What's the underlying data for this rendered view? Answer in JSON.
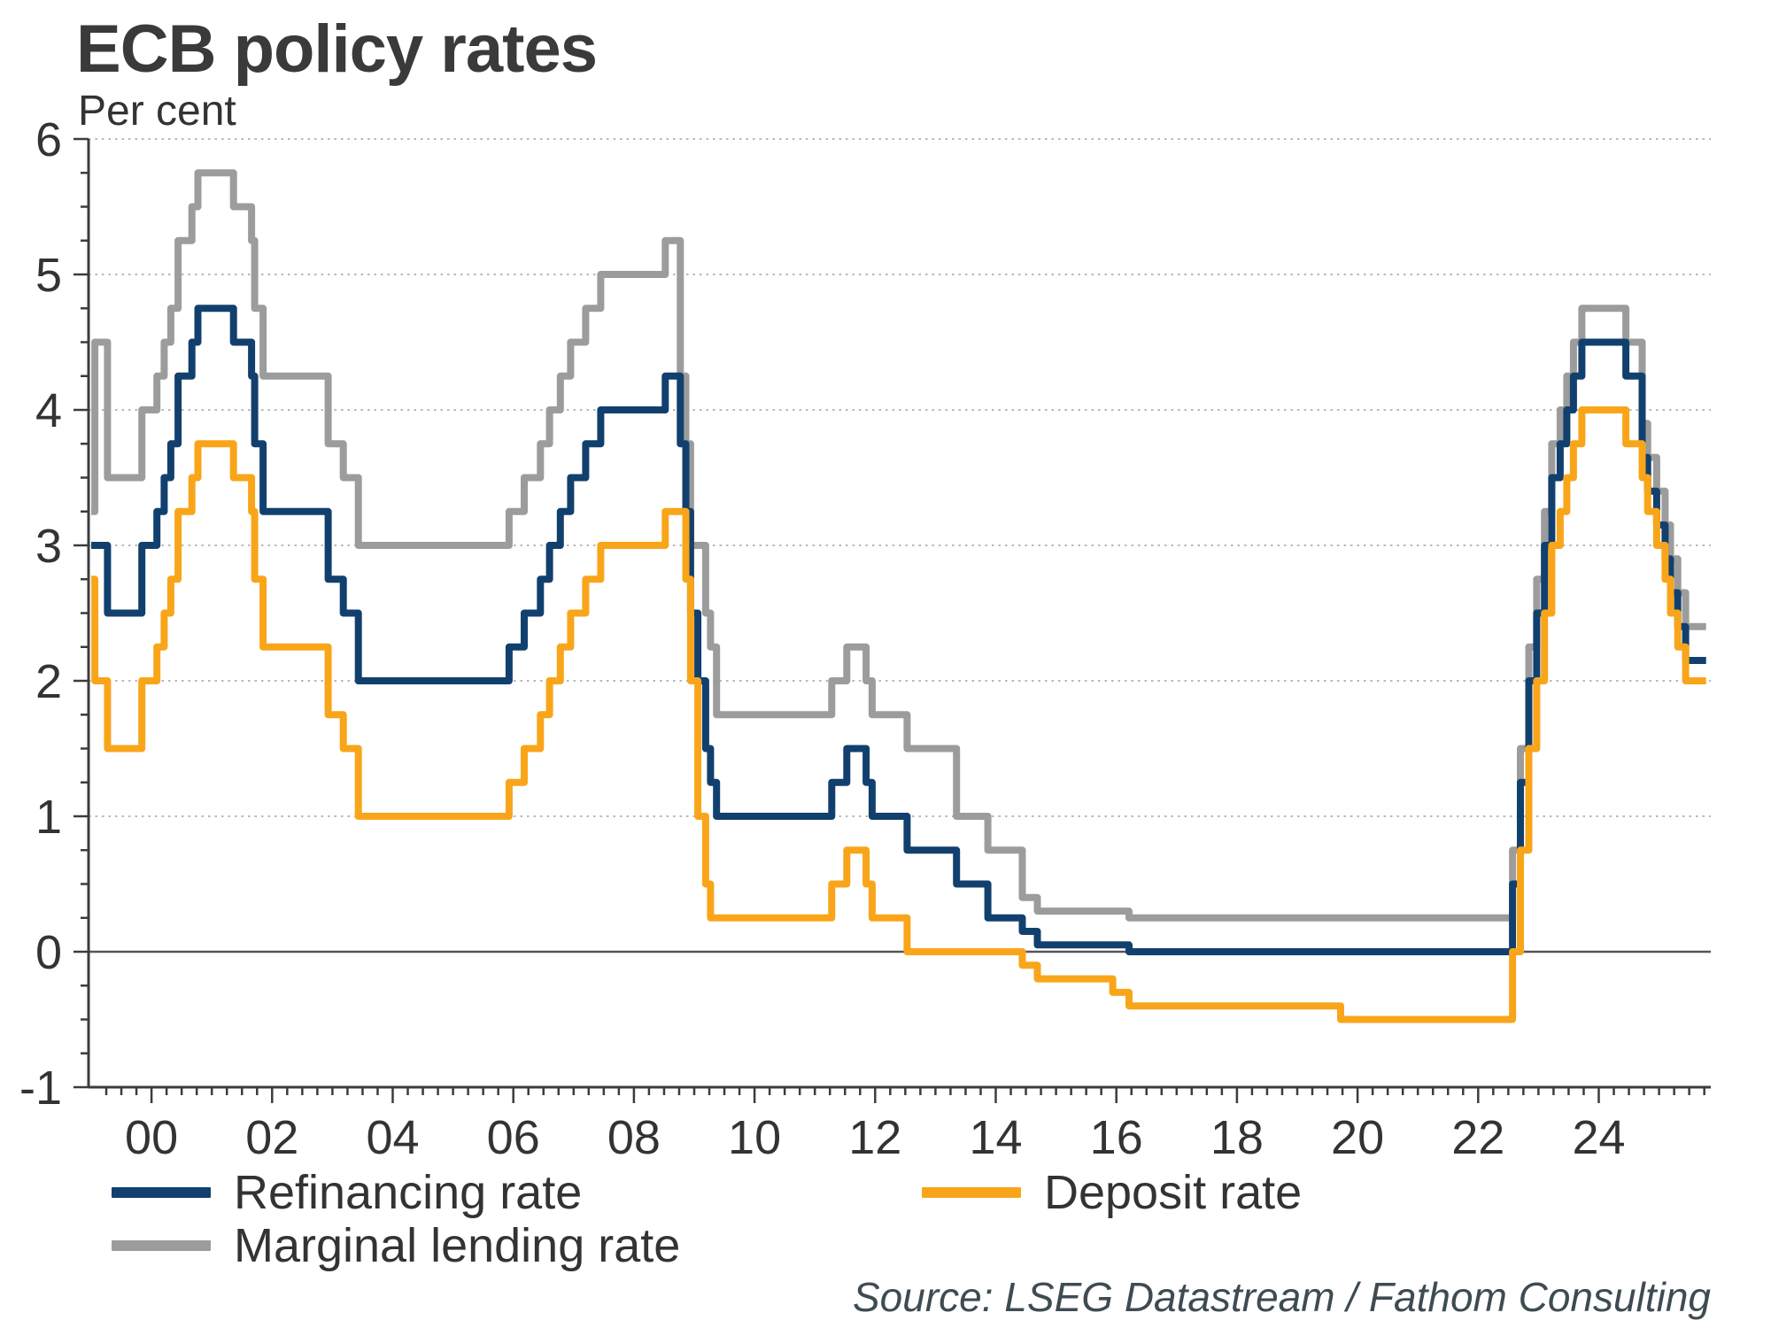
{
  "page": {
    "title": "ECB policy rates",
    "subtitle": "Per cent",
    "source": "Source: LSEG Datastream / Fathom Consulting"
  },
  "legend": [
    {
      "label": "Refinancing rate",
      "series_ref": "Refinancing rate"
    },
    {
      "label": "Marginal lending rate",
      "series_ref": "Marginal lending rate"
    },
    {
      "label": "Deposit rate",
      "series_ref": "Deposit rate"
    }
  ],
  "chart_data": {
    "type": "line",
    "step": true,
    "title": "ECB policy rates",
    "xlabel": "",
    "ylabel": "Per cent",
    "xlim": [
      1999.0,
      2025.9
    ],
    "ylim": [
      -1,
      6
    ],
    "y_ticks": [
      -1,
      0,
      1,
      2,
      3,
      4,
      5,
      6
    ],
    "y_tick_labels": [
      "-1",
      "0",
      "1",
      "2",
      "3",
      "4",
      "5",
      "6"
    ],
    "y_minor_interval": 0.25,
    "x_tick_years": [
      2000,
      2002,
      2004,
      2006,
      2008,
      2010,
      2012,
      2014,
      2016,
      2018,
      2020,
      2022,
      2024
    ],
    "x_tick_labels": [
      "00",
      "02",
      "04",
      "06",
      "08",
      "10",
      "12",
      "14",
      "16",
      "18",
      "20",
      "22",
      "24"
    ],
    "x_minor_interval": 0.25,
    "grid": "horizontal dotted at 1..6, solid thin line at 0, legend bottom",
    "colors": {
      "grid": "#b8b8b8",
      "zero_line": "#555555",
      "axis": "#3c3c3c",
      "text": "#333333"
    },
    "series": [
      {
        "name": "Marginal lending rate",
        "color": "#9c9c9c",
        "points": [
          [
            1999.0,
            3.25
          ],
          [
            1999.06,
            4.5
          ],
          [
            1999.27,
            3.5
          ],
          [
            1999.84,
            4.0
          ],
          [
            2000.09,
            4.25
          ],
          [
            2000.21,
            4.5
          ],
          [
            2000.32,
            4.75
          ],
          [
            2000.44,
            5.25
          ],
          [
            2000.67,
            5.5
          ],
          [
            2000.77,
            5.75
          ],
          [
            2001.36,
            5.5
          ],
          [
            2001.66,
            5.25
          ],
          [
            2001.71,
            4.75
          ],
          [
            2001.85,
            4.25
          ],
          [
            2002.93,
            3.75
          ],
          [
            2003.18,
            3.5
          ],
          [
            2003.43,
            3.0
          ],
          [
            2005.93,
            3.25
          ],
          [
            2006.18,
            3.5
          ],
          [
            2006.45,
            3.75
          ],
          [
            2006.6,
            4.0
          ],
          [
            2006.78,
            4.25
          ],
          [
            2006.95,
            4.5
          ],
          [
            2007.2,
            4.75
          ],
          [
            2007.45,
            5.0
          ],
          [
            2008.52,
            5.25
          ],
          [
            2008.77,
            4.25
          ],
          [
            2008.86,
            3.75
          ],
          [
            2008.94,
            3.0
          ],
          [
            2009.19,
            2.5
          ],
          [
            2009.27,
            2.25
          ],
          [
            2009.37,
            1.75
          ],
          [
            2011.28,
            2.0
          ],
          [
            2011.53,
            2.25
          ],
          [
            2011.85,
            2.0
          ],
          [
            2011.95,
            1.75
          ],
          [
            2012.53,
            1.5
          ],
          [
            2013.35,
            1.0
          ],
          [
            2013.87,
            0.75
          ],
          [
            2014.44,
            0.4
          ],
          [
            2014.69,
            0.3
          ],
          [
            2016.21,
            0.25
          ],
          [
            2022.57,
            0.75
          ],
          [
            2022.7,
            1.5
          ],
          [
            2022.84,
            2.25
          ],
          [
            2022.97,
            2.75
          ],
          [
            2023.1,
            3.25
          ],
          [
            2023.22,
            3.75
          ],
          [
            2023.36,
            4.0
          ],
          [
            2023.47,
            4.25
          ],
          [
            2023.58,
            4.5
          ],
          [
            2023.72,
            4.75
          ],
          [
            2024.45,
            4.5
          ],
          [
            2024.72,
            3.9
          ],
          [
            2024.81,
            3.65
          ],
          [
            2024.96,
            3.4
          ],
          [
            2025.1,
            3.15
          ],
          [
            2025.19,
            2.9
          ],
          [
            2025.31,
            2.65
          ],
          [
            2025.44,
            2.4
          ],
          [
            2025.78,
            2.4
          ]
        ]
      },
      {
        "name": "Refinancing rate",
        "color": "#12406e",
        "points": [
          [
            1999.0,
            3.0
          ],
          [
            1999.27,
            2.5
          ],
          [
            1999.84,
            3.0
          ],
          [
            2000.09,
            3.25
          ],
          [
            2000.21,
            3.5
          ],
          [
            2000.32,
            3.75
          ],
          [
            2000.44,
            4.25
          ],
          [
            2000.67,
            4.5
          ],
          [
            2000.77,
            4.75
          ],
          [
            2001.36,
            4.5
          ],
          [
            2001.66,
            4.25
          ],
          [
            2001.71,
            3.75
          ],
          [
            2001.85,
            3.25
          ],
          [
            2002.93,
            2.75
          ],
          [
            2003.18,
            2.5
          ],
          [
            2003.43,
            2.0
          ],
          [
            2005.93,
            2.25
          ],
          [
            2006.18,
            2.5
          ],
          [
            2006.45,
            2.75
          ],
          [
            2006.6,
            3.0
          ],
          [
            2006.78,
            3.25
          ],
          [
            2006.95,
            3.5
          ],
          [
            2007.2,
            3.75
          ],
          [
            2007.45,
            4.0
          ],
          [
            2008.52,
            4.25
          ],
          [
            2008.77,
            3.75
          ],
          [
            2008.86,
            3.25
          ],
          [
            2008.94,
            2.5
          ],
          [
            2009.06,
            2.0
          ],
          [
            2009.19,
            1.5
          ],
          [
            2009.27,
            1.25
          ],
          [
            2009.37,
            1.0
          ],
          [
            2011.28,
            1.25
          ],
          [
            2011.53,
            1.5
          ],
          [
            2011.85,
            1.25
          ],
          [
            2011.95,
            1.0
          ],
          [
            2012.53,
            0.75
          ],
          [
            2013.35,
            0.5
          ],
          [
            2013.87,
            0.25
          ],
          [
            2014.44,
            0.15
          ],
          [
            2014.69,
            0.05
          ],
          [
            2016.21,
            0.0
          ],
          [
            2022.57,
            0.5
          ],
          [
            2022.7,
            1.25
          ],
          [
            2022.84,
            2.0
          ],
          [
            2022.97,
            2.5
          ],
          [
            2023.1,
            3.0
          ],
          [
            2023.22,
            3.5
          ],
          [
            2023.36,
            3.75
          ],
          [
            2023.47,
            4.0
          ],
          [
            2023.58,
            4.25
          ],
          [
            2023.72,
            4.5
          ],
          [
            2024.45,
            4.25
          ],
          [
            2024.72,
            3.65
          ],
          [
            2024.81,
            3.4
          ],
          [
            2024.96,
            3.15
          ],
          [
            2025.1,
            2.9
          ],
          [
            2025.19,
            2.65
          ],
          [
            2025.31,
            2.4
          ],
          [
            2025.44,
            2.15
          ],
          [
            2025.78,
            2.15
          ]
        ]
      },
      {
        "name": "Deposit rate",
        "color": "#f9a51a",
        "points": [
          [
            1999.0,
            2.75
          ],
          [
            1999.06,
            2.0
          ],
          [
            1999.27,
            1.5
          ],
          [
            1999.84,
            2.0
          ],
          [
            2000.09,
            2.25
          ],
          [
            2000.21,
            2.5
          ],
          [
            2000.32,
            2.75
          ],
          [
            2000.44,
            3.25
          ],
          [
            2000.67,
            3.5
          ],
          [
            2000.77,
            3.75
          ],
          [
            2001.36,
            3.5
          ],
          [
            2001.66,
            3.25
          ],
          [
            2001.71,
            2.75
          ],
          [
            2001.85,
            2.25
          ],
          [
            2002.93,
            1.75
          ],
          [
            2003.18,
            1.5
          ],
          [
            2003.43,
            1.0
          ],
          [
            2005.93,
            1.25
          ],
          [
            2006.18,
            1.5
          ],
          [
            2006.45,
            1.75
          ],
          [
            2006.6,
            2.0
          ],
          [
            2006.78,
            2.25
          ],
          [
            2006.95,
            2.5
          ],
          [
            2007.2,
            2.75
          ],
          [
            2007.45,
            3.0
          ],
          [
            2008.52,
            3.25
          ],
          [
            2008.86,
            2.75
          ],
          [
            2008.94,
            2.0
          ],
          [
            2009.06,
            1.0
          ],
          [
            2009.19,
            0.5
          ],
          [
            2009.27,
            0.25
          ],
          [
            2011.28,
            0.5
          ],
          [
            2011.53,
            0.75
          ],
          [
            2011.85,
            0.5
          ],
          [
            2011.95,
            0.25
          ],
          [
            2012.53,
            0.0
          ],
          [
            2014.44,
            -0.1
          ],
          [
            2014.69,
            -0.2
          ],
          [
            2015.94,
            -0.3
          ],
          [
            2016.21,
            -0.4
          ],
          [
            2019.72,
            -0.5
          ],
          [
            2022.57,
            0.0
          ],
          [
            2022.7,
            0.75
          ],
          [
            2022.84,
            1.5
          ],
          [
            2022.97,
            2.0
          ],
          [
            2023.1,
            2.5
          ],
          [
            2023.22,
            3.0
          ],
          [
            2023.36,
            3.25
          ],
          [
            2023.47,
            3.5
          ],
          [
            2023.58,
            3.75
          ],
          [
            2023.72,
            4.0
          ],
          [
            2024.45,
            3.75
          ],
          [
            2024.72,
            3.5
          ],
          [
            2024.81,
            3.25
          ],
          [
            2024.96,
            3.0
          ],
          [
            2025.1,
            2.75
          ],
          [
            2025.19,
            2.5
          ],
          [
            2025.31,
            2.25
          ],
          [
            2025.44,
            2.0
          ],
          [
            2025.78,
            2.0
          ]
        ]
      }
    ]
  }
}
